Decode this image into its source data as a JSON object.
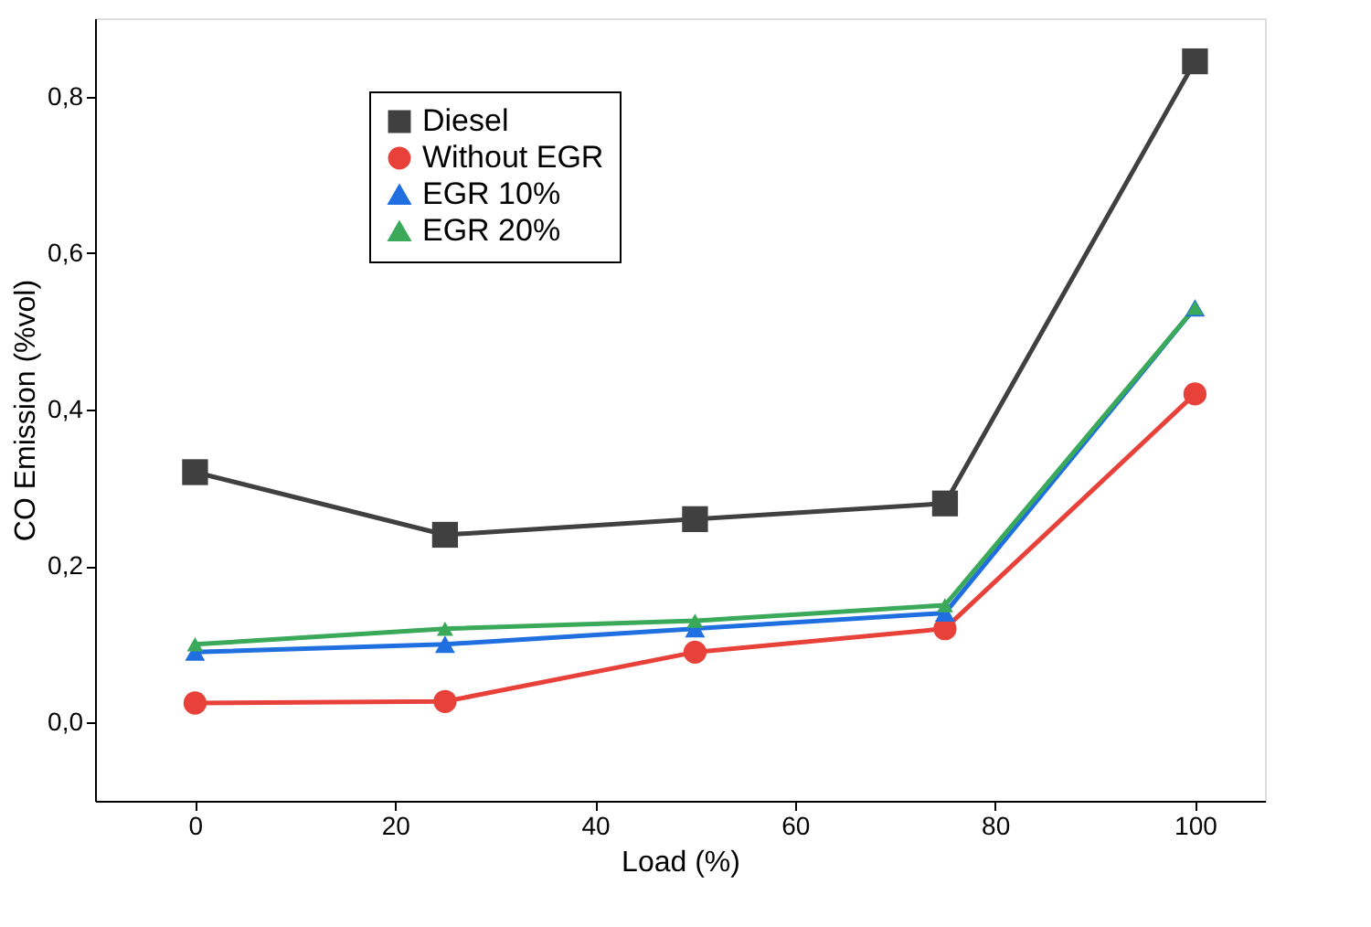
{
  "chart_data": {
    "type": "line",
    "xlabel": "Load (%)",
    "ylabel": "CO Emission (%vol)",
    "x": [
      0,
      25,
      50,
      75,
      100
    ],
    "xlim": [
      -10,
      107
    ],
    "xticks": [
      0,
      20,
      40,
      60,
      80,
      100
    ],
    "ylim": [
      -0.1,
      0.9
    ],
    "yticks": [
      {
        "value": 0,
        "label": "0,0"
      },
      {
        "value": 0.2,
        "label": "0,2"
      },
      {
        "value": 0.4,
        "label": "0,4"
      },
      {
        "value": 0.6,
        "label": "0,6"
      },
      {
        "value": 0.8,
        "label": "0,8"
      }
    ],
    "grid": false,
    "legend": "top",
    "line_style": "solid",
    "series": [
      {
        "name": "Diesel",
        "color": "#404040",
        "marker": "square",
        "values": [
          0.32,
          0.24,
          0.26,
          0.28,
          0.845
        ]
      },
      {
        "name": "Without EGR",
        "color": "#e8413a",
        "marker": "circle",
        "values": [
          0.025,
          0.027,
          0.09,
          0.12,
          0.42
        ]
      },
      {
        "name": "EGR 10%",
        "color": "#1f6fe0",
        "marker": "triangle",
        "values": [
          0.09,
          0.1,
          0.12,
          0.14,
          0.53
        ]
      },
      {
        "name": "EGR 20%",
        "color": "#3aaa5a",
        "marker": "triangle",
        "values": [
          0.1,
          0.12,
          0.13,
          0.15,
          0.53
        ]
      }
    ]
  }
}
